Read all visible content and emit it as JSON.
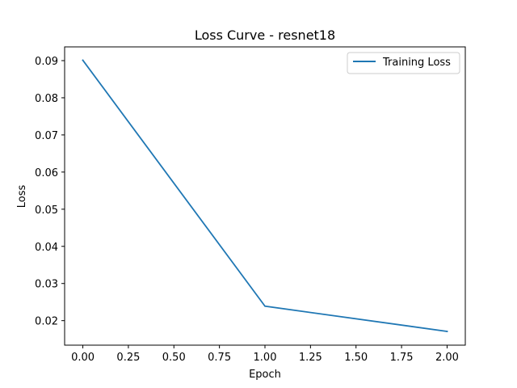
{
  "chart_data": {
    "type": "line",
    "title": "Loss Curve - resnet18",
    "xlabel": "Epoch",
    "ylabel": "Loss",
    "xlim": [
      -0.1,
      2.1
    ],
    "ylim": [
      0.0134,
      0.0937
    ],
    "xticks": [
      0.0,
      0.25,
      0.5,
      0.75,
      1.0,
      1.25,
      1.5,
      1.75,
      2.0
    ],
    "xtick_labels": [
      "0.00",
      "0.25",
      "0.50",
      "0.75",
      "1.00",
      "1.25",
      "1.50",
      "1.75",
      "2.00"
    ],
    "yticks": [
      0.02,
      0.03,
      0.04,
      0.05,
      0.06,
      0.07,
      0.08,
      0.09
    ],
    "ytick_labels": [
      "0.02",
      "0.03",
      "0.04",
      "0.05",
      "0.06",
      "0.07",
      "0.08",
      "0.09"
    ],
    "grid": false,
    "legend": "top-right",
    "series": [
      {
        "name": "Training Loss",
        "color": "#1f77b4",
        "x": [
          0,
          1,
          2
        ],
        "y": [
          0.0901,
          0.0239,
          0.0171
        ]
      }
    ]
  }
}
